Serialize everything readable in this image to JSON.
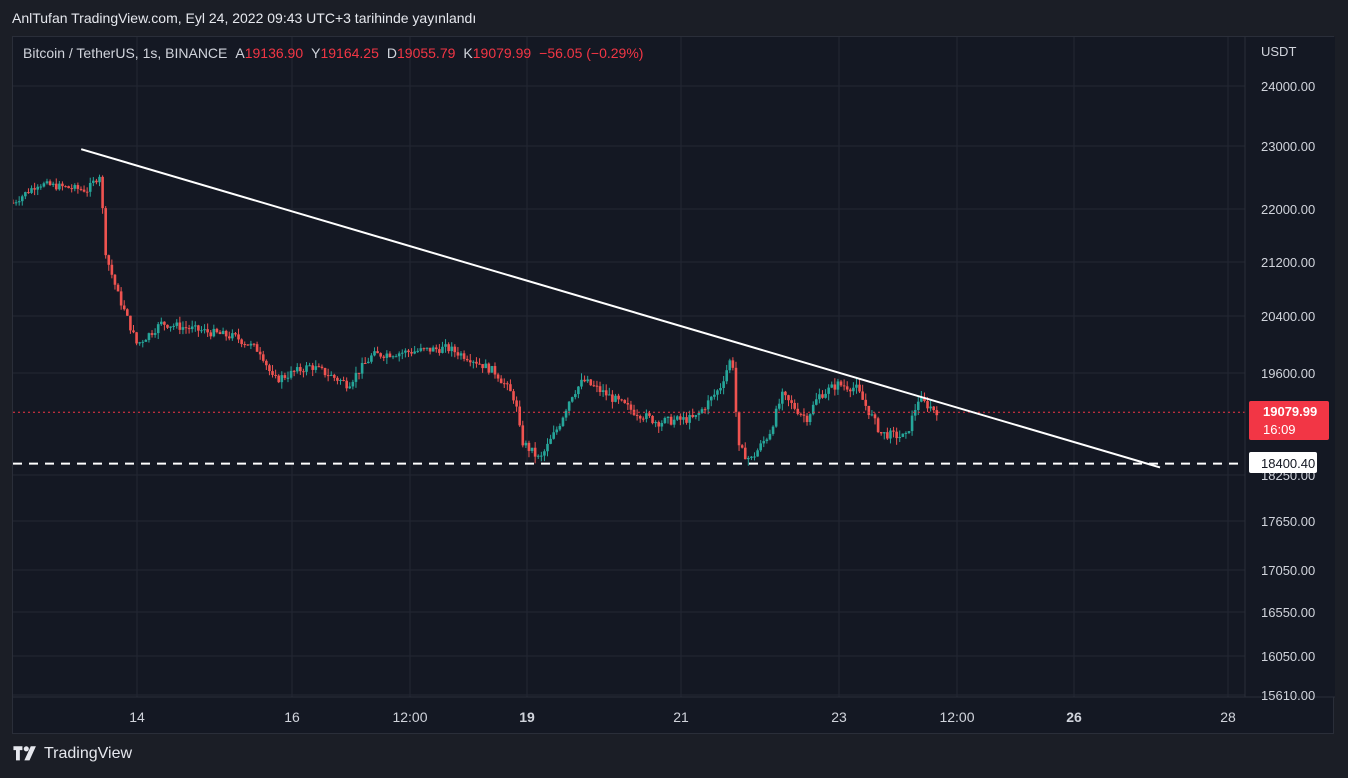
{
  "header": {
    "caption": "AnlTufan TradingView.com, Eyl 24, 2022 09:43 UTC+3 tarihinde yayınlandı"
  },
  "legend": {
    "symbol": "Bitcoin / TetherUS, 1s, BINANCE",
    "open_label": "A",
    "open": "19136.90",
    "high_label": "Y",
    "high": "19164.25",
    "low_label": "D",
    "low": "19055.79",
    "close_label": "K",
    "close": "19079.99",
    "change": "−56.05 (−0.29%)"
  },
  "price_axis": {
    "currency": "USDT",
    "ticks": [
      "24000.00",
      "23000.00",
      "22000.00",
      "21200.00",
      "20400.00",
      "19600.00",
      "18250.00",
      "17650.00",
      "17050.00",
      "16550.00",
      "16050.00",
      "15610.00"
    ]
  },
  "time_axis": {
    "ticks": [
      "14",
      "16",
      "12:00",
      "19",
      "21",
      "23",
      "12:00",
      "26",
      "28"
    ]
  },
  "last_price": {
    "value": "19079.99",
    "countdown": "16:09"
  },
  "horizontal_line": {
    "value": "18400.40"
  },
  "footer": {
    "brand": "TradingView"
  },
  "colors": {
    "up": "#26a69a",
    "down": "#ef5350",
    "background": "#141823",
    "grid": "#232733",
    "trendline": "#ffffff",
    "last_price": "#f23645"
  },
  "chart_data": {
    "type": "candlestick",
    "symbol": "BTCUSDT",
    "exchange": "BINANCE",
    "interval": "1s",
    "ylim": [
      15610,
      24000
    ],
    "price_series": [
      {
        "t": 0.0,
        "p": 22100
      },
      {
        "t": 0.02,
        "p": 22400
      },
      {
        "t": 0.04,
        "p": 22350
      },
      {
        "t": 0.06,
        "p": 22300
      },
      {
        "t": 0.07,
        "p": 22550
      },
      {
        "t": 0.075,
        "p": 21300
      },
      {
        "t": 0.085,
        "p": 20700
      },
      {
        "t": 0.1,
        "p": 20000
      },
      {
        "t": 0.12,
        "p": 20300
      },
      {
        "t": 0.15,
        "p": 20200
      },
      {
        "t": 0.18,
        "p": 20100
      },
      {
        "t": 0.2,
        "p": 19900
      },
      {
        "t": 0.21,
        "p": 19500
      },
      {
        "t": 0.24,
        "p": 19700
      },
      {
        "t": 0.27,
        "p": 19450
      },
      {
        "t": 0.29,
        "p": 19850
      },
      {
        "t": 0.32,
        "p": 19900
      },
      {
        "t": 0.35,
        "p": 19950
      },
      {
        "t": 0.37,
        "p": 19800
      },
      {
        "t": 0.39,
        "p": 19600
      },
      {
        "t": 0.405,
        "p": 19250
      },
      {
        "t": 0.41,
        "p": 18700
      },
      {
        "t": 0.425,
        "p": 18450
      },
      {
        "t": 0.44,
        "p": 18900
      },
      {
        "t": 0.45,
        "p": 19300
      },
      {
        "t": 0.46,
        "p": 19500
      },
      {
        "t": 0.48,
        "p": 19300
      },
      {
        "t": 0.5,
        "p": 19100
      },
      {
        "t": 0.52,
        "p": 18950
      },
      {
        "t": 0.55,
        "p": 19000
      },
      {
        "t": 0.57,
        "p": 19400
      },
      {
        "t": 0.58,
        "p": 19850
      },
      {
        "t": 0.585,
        "p": 18600
      },
      {
        "t": 0.595,
        "p": 18450
      },
      {
        "t": 0.61,
        "p": 18800
      },
      {
        "t": 0.62,
        "p": 19300
      },
      {
        "t": 0.64,
        "p": 19000
      },
      {
        "t": 0.65,
        "p": 19300
      },
      {
        "t": 0.665,
        "p": 19450
      },
      {
        "t": 0.68,
        "p": 19400
      },
      {
        "t": 0.7,
        "p": 18800
      },
      {
        "t": 0.72,
        "p": 18750
      },
      {
        "t": 0.73,
        "p": 19250
      },
      {
        "t": 0.745,
        "p": 19100
      }
    ],
    "trendline": [
      {
        "t": 0.055,
        "p": 22950
      },
      {
        "t": 0.925,
        "p": 18350
      }
    ],
    "horizontal_level": 18400.4,
    "last_price": 19079.99
  }
}
